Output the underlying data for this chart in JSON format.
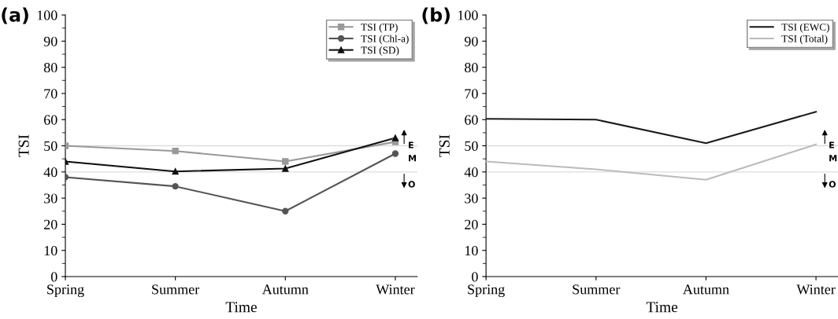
{
  "chart_data": [
    {
      "type": "line",
      "title": "(a)",
      "xlabel": "Time",
      "ylabel": "TSI",
      "categories": [
        "Spring",
        "Summer",
        "Autumn",
        "Winter"
      ],
      "series": [
        {
          "name": "TSI (TP)",
          "color": "#999999",
          "marker": "square",
          "values": [
            50,
            48,
            44,
            51.5
          ]
        },
        {
          "name": "TSI (Chl-a)",
          "color": "#555555",
          "marker": "circle",
          "values": [
            38,
            34.5,
            25,
            47
          ]
        },
        {
          "name": "TSI (SD)",
          "color": "#111111",
          "marker": "triangle",
          "values": [
            44,
            40.2,
            41.3,
            53
          ]
        }
      ],
      "ylim": [
        0,
        100
      ],
      "yticks": [
        0,
        10,
        20,
        30,
        40,
        50,
        60,
        70,
        80,
        90,
        100
      ],
      "grid": false,
      "legend": "top right",
      "ref_lines": [
        {
          "axis": "y",
          "value": 50,
          "color": "#dddddd"
        },
        {
          "axis": "y",
          "value": 40,
          "color": "#dddddd"
        }
      ],
      "annotations": [
        "E",
        "M",
        "O"
      ]
    },
    {
      "type": "line",
      "title": "(b)",
      "xlabel": "Time",
      "ylabel": "TSI",
      "categories": [
        "Spring",
        "Summer",
        "Autumn",
        "Winter"
      ],
      "series": [
        {
          "name": "TSI (EWC)",
          "color": "#1a1a1a",
          "values": [
            60.3,
            60,
            51,
            63
          ]
        },
        {
          "name": "TSI (Total)",
          "color": "#bbbbbb",
          "values": [
            44,
            41,
            37,
            50.5
          ]
        }
      ],
      "ylim": [
        0,
        100
      ],
      "yticks": [
        0,
        10,
        20,
        30,
        40,
        50,
        60,
        70,
        80,
        90,
        100
      ],
      "grid": false,
      "legend": "top right",
      "marker": "none",
      "ref_lines": [
        {
          "axis": "y",
          "value": 50,
          "color": "#dddddd"
        },
        {
          "axis": "y",
          "value": 40,
          "color": "#dddddd"
        }
      ],
      "annotations": [
        "E",
        "M",
        "O"
      ]
    }
  ]
}
